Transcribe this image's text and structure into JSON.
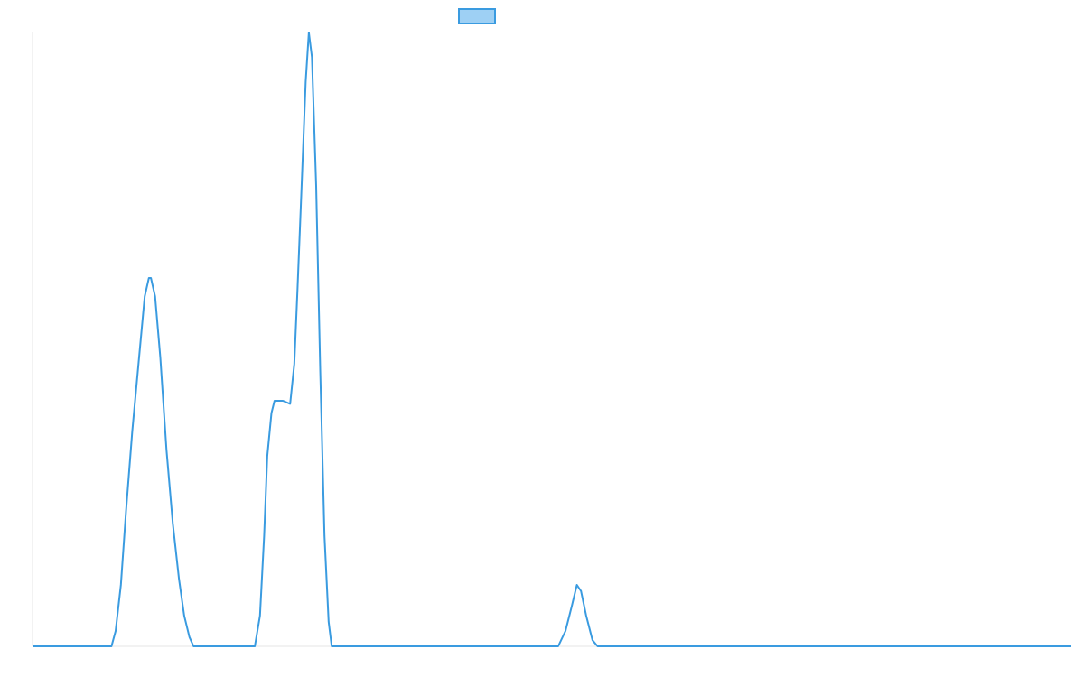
{
  "chart_data": {
    "type": "line",
    "title": "",
    "xlabel": "",
    "ylabel": "",
    "x_range": [
      0,
      100
    ],
    "y_range": [
      0,
      100
    ],
    "grid": false,
    "legend": {
      "position": "top-center",
      "entries": [
        ""
      ]
    },
    "series": [
      {
        "color": "#3a9be0",
        "fill": "#9ed0f4",
        "points": [
          [
            0,
            0
          ],
          [
            7.6,
            0
          ],
          [
            8.0,
            2.5
          ],
          [
            8.5,
            10
          ],
          [
            9.0,
            22
          ],
          [
            9.6,
            35
          ],
          [
            10.2,
            46
          ],
          [
            10.8,
            57
          ],
          [
            11.2,
            60
          ],
          [
            11.4,
            60
          ],
          [
            11.8,
            57
          ],
          [
            12.3,
            47
          ],
          [
            12.9,
            32
          ],
          [
            13.5,
            20
          ],
          [
            14.1,
            11
          ],
          [
            14.6,
            5
          ],
          [
            15.1,
            1.5
          ],
          [
            15.5,
            0
          ],
          [
            21.4,
            0
          ],
          [
            21.9,
            5
          ],
          [
            22.3,
            18
          ],
          [
            22.6,
            31
          ],
          [
            23.0,
            38
          ],
          [
            23.3,
            40
          ],
          [
            24.1,
            40
          ],
          [
            24.8,
            39.5
          ],
          [
            25.2,
            46
          ],
          [
            25.5,
            58
          ],
          [
            25.9,
            75
          ],
          [
            26.3,
            92
          ],
          [
            26.6,
            100
          ],
          [
            26.9,
            96
          ],
          [
            27.3,
            75
          ],
          [
            27.7,
            45
          ],
          [
            28.1,
            18
          ],
          [
            28.5,
            4
          ],
          [
            28.8,
            0
          ],
          [
            50.6,
            0
          ],
          [
            51.3,
            2.5
          ],
          [
            51.9,
            6.5
          ],
          [
            52.4,
            10
          ],
          [
            52.8,
            9
          ],
          [
            53.3,
            5
          ],
          [
            53.9,
            1
          ],
          [
            54.4,
            0
          ],
          [
            100,
            0
          ]
        ]
      }
    ]
  }
}
